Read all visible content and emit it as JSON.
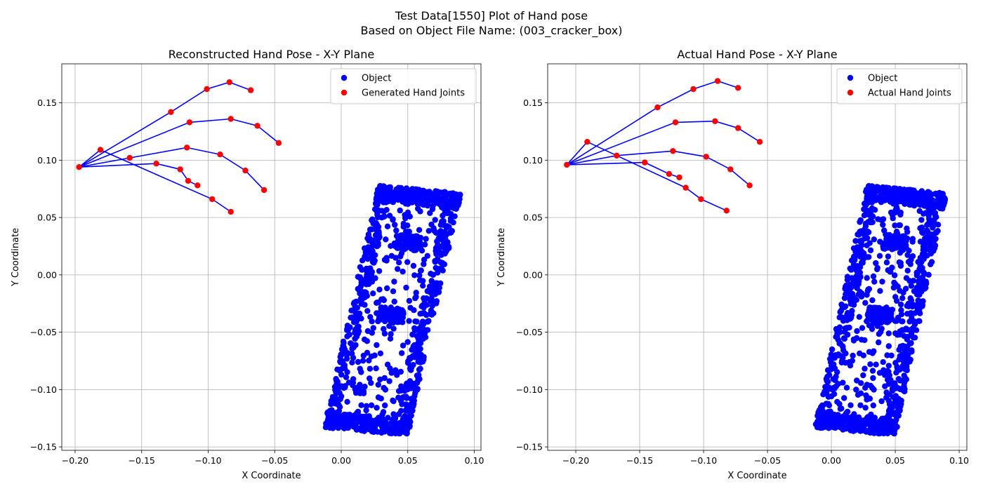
{
  "figure": {
    "title_line1": "Test Data[1550] Plot of Hand pose",
    "title_line2": "Based on Object File Name: (003_cracker_box)"
  },
  "colors": {
    "object": "#0000ff",
    "joints": "#ff0000",
    "bones": "#0000ff",
    "grid": "#b0b0b0"
  },
  "chart_data": [
    {
      "type": "scatter",
      "title": "Reconstructed Hand Pose - X-Y Plane",
      "xlabel": "X Coordinate",
      "ylabel": "Y Coordinate",
      "xlim": [
        -0.21,
        0.105
      ],
      "ylim": [
        -0.153,
        0.184
      ],
      "xticks": [
        -0.2,
        -0.15,
        -0.1,
        -0.05,
        0.0,
        0.05,
        0.1
      ],
      "xtick_labels": [
        "−0.20",
        "−0.15",
        "−0.10",
        "−0.05",
        "0.00",
        "0.05",
        "0.10"
      ],
      "yticks": [
        -0.15,
        -0.1,
        -0.05,
        0.0,
        0.05,
        0.1,
        0.15
      ],
      "ytick_labels": [
        "−0.15",
        "−0.10",
        "−0.05",
        "0.00",
        "0.05",
        "0.10",
        "0.15"
      ],
      "grid": true,
      "legend_position": "top-right",
      "legend": [
        "Object",
        "Generated Hand Joints"
      ],
      "object_outline": [
        [
          0.028,
          0.078
        ],
        [
          0.09,
          0.071
        ],
        [
          0.05,
          -0.14
        ],
        [
          -0.013,
          -0.133
        ]
      ],
      "hand_joints": {
        "wrist": [
          -0.197,
          0.094
        ],
        "fingers": [
          [
            [
              -0.128,
              0.142
            ],
            [
              -0.101,
              0.162
            ],
            [
              -0.084,
              0.168
            ],
            [
              -0.068,
              0.161
            ]
          ],
          [
            [
              -0.114,
              0.133
            ],
            [
              -0.083,
              0.136
            ],
            [
              -0.063,
              0.13
            ],
            [
              -0.047,
              0.115
            ]
          ],
          [
            [
              -0.159,
              0.102
            ],
            [
              -0.116,
              0.111
            ],
            [
              -0.091,
              0.105
            ],
            [
              -0.072,
              0.091
            ],
            [
              -0.058,
              0.074
            ]
          ],
          [
            [
              -0.139,
              0.097
            ],
            [
              -0.121,
              0.092
            ],
            [
              -0.115,
              0.082
            ],
            [
              -0.108,
              0.078
            ]
          ],
          [
            [
              -0.181,
              0.109
            ],
            [
              -0.097,
              0.066
            ],
            [
              -0.083,
              0.055
            ]
          ]
        ]
      }
    },
    {
      "type": "scatter",
      "title": "Actual Hand Pose - X-Y Plane",
      "xlabel": "X Coordinate",
      "ylabel": "Y Coordinate",
      "xlim": [
        -0.222,
        0.106
      ],
      "ylim": [
        -0.153,
        0.184
      ],
      "xticks": [
        -0.2,
        -0.15,
        -0.1,
        -0.05,
        0.0,
        0.05,
        0.1
      ],
      "xtick_labels": [
        "−0.20",
        "−0.15",
        "−0.10",
        "−0.05",
        "0.00",
        "0.05",
        "0.10"
      ],
      "yticks": [
        -0.15,
        -0.1,
        -0.05,
        0.0,
        0.05,
        0.1,
        0.15
      ],
      "ytick_labels": [
        "−0.15",
        "−0.10",
        "−0.05",
        "0.00",
        "0.05",
        "0.10",
        "0.15"
      ],
      "grid": true,
      "legend_position": "top-right",
      "legend": [
        "Object",
        "Actual Hand Joints"
      ],
      "object_outline": [
        [
          0.028,
          0.078
        ],
        [
          0.09,
          0.071
        ],
        [
          0.05,
          -0.14
        ],
        [
          -0.013,
          -0.133
        ]
      ],
      "hand_joints": {
        "wrist": [
          -0.207,
          0.096
        ],
        "fingers": [
          [
            [
              -0.136,
              0.146
            ],
            [
              -0.108,
              0.162
            ],
            [
              -0.089,
              0.169
            ],
            [
              -0.073,
              0.163
            ]
          ],
          [
            [
              -0.122,
              0.133
            ],
            [
              -0.091,
              0.134
            ],
            [
              -0.073,
              0.128
            ],
            [
              -0.056,
              0.116
            ]
          ],
          [
            [
              -0.168,
              0.104
            ],
            [
              -0.124,
              0.108
            ],
            [
              -0.098,
              0.103
            ],
            [
              -0.079,
              0.092
            ],
            [
              -0.064,
              0.078
            ]
          ],
          [
            [
              -0.146,
              0.098
            ],
            [
              -0.127,
              0.088
            ],
            [
              -0.119,
              0.085
            ]
          ],
          [
            [
              -0.191,
              0.116
            ],
            [
              -0.114,
              0.076
            ],
            [
              -0.102,
              0.066
            ],
            [
              -0.082,
              0.056
            ]
          ]
        ]
      }
    }
  ]
}
